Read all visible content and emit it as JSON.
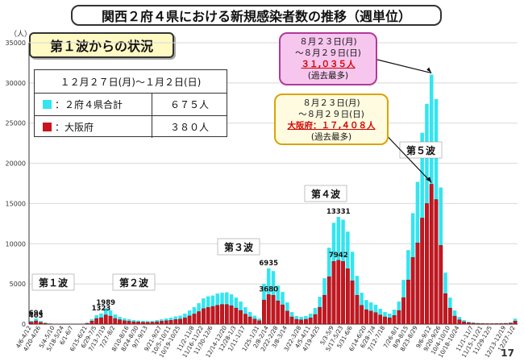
{
  "title": "関西２府４県における新規感染者数の推移（週単位）",
  "subtitle": "第１波からの状況",
  "y_unit": "（人）",
  "page_number": "17",
  "legend": {
    "period": "１２月２７日(月)〜１月２日(日)",
    "rows": [
      {
        "label": "：２府４県合計",
        "value": "６７５人",
        "color": "#33e5f0"
      },
      {
        "label": "：大阪府",
        "value": "３８０人",
        "color": "#c8141e"
      }
    ]
  },
  "callout_total": {
    "line1": "８月２３日(月)",
    "line2": "〜８月２９日(日)",
    "value": "３１,０３５人",
    "note": "(過去最多)"
  },
  "callout_osaka": {
    "line1": "８月２３日(月)",
    "line2": "〜８月２９日(日)",
    "value": "大阪府：１７,４０８人",
    "note": "(過去最多)"
  },
  "colors": {
    "total": "#33e5f0",
    "osaka": "#c8141e"
  },
  "chart_data": {
    "type": "bar",
    "ylim": [
      0,
      35000
    ],
    "yticks": [
      0,
      5000,
      10000,
      15000,
      20000,
      25000,
      30000,
      35000
    ],
    "xtick_labels": [
      "4/6-4/12",
      "4/20-4/26",
      "5/4-5/10",
      "5/18-5/24",
      "6/1-6/7",
      "6/15-6/21",
      "6/29-7/5",
      "7/13-7/19",
      "7/27-8/2",
      "8/10-8/16",
      "8/24-8/30",
      "9/7-9/13",
      "9/21-9/27",
      "10/5-10/11",
      "10/19-10/25",
      "11/2-11/8",
      "11/16-11/22",
      "11/30-12/6",
      "12/14-12/20",
      "12/28-1/3",
      "1/11-1/17",
      "1/25-1/31",
      "2/8-2/14",
      "2/22-2/28",
      "3/8-3/14",
      "3/22-3/28",
      "4/5-4/11",
      "4/19-4/25",
      "5/3-5/9",
      "5/17-5/23",
      "5/31-6/6",
      "6/14-6/20",
      "6/28-7/4",
      "7/12-7/18",
      "7/26-8/1",
      "8/9-8/15",
      "8/23-8/29",
      "9/6-9/12",
      "9/20-9/26",
      "10/4-10/10",
      "10/18-10/24",
      "11/1-11/7",
      "11/15-11/21",
      "11/29-12/5",
      "12/13-12/19",
      "12/27-1/2"
    ],
    "series": [
      {
        "name": "２府４県合計",
        "values": [
          400,
          694,
          380,
          180,
          80,
          20,
          10,
          5,
          5,
          5,
          10,
          40,
          160,
          600,
          1100,
          1323,
          1989,
          1700,
          1200,
          900,
          700,
          600,
          500,
          450,
          400,
          380,
          400,
          500,
          600,
          700,
          800,
          950,
          1050,
          1300,
          1700,
          2100,
          2600,
          3200,
          3450,
          3550,
          3800,
          3900,
          3950,
          3700,
          3300,
          2800,
          2100,
          1500,
          1050,
          700,
          5000,
          6935,
          6600,
          4800,
          4000,
          2700,
          1500,
          1000,
          900,
          1000,
          1300,
          2000,
          3400,
          5700,
          9500,
          12600,
          13331,
          13000,
          11500,
          9000,
          6000,
          3900,
          3000,
          2700,
          2400,
          1900,
          1500,
          1300,
          1800,
          2800,
          5500,
          9200,
          13800,
          17700,
          23800,
          27400,
          31035,
          28000,
          17000,
          6400,
          3300,
          1700,
          900,
          500,
          300,
          200,
          150,
          120,
          100,
          100,
          110,
          120,
          150,
          200,
          675
        ],
        "color": "#33e5f0"
      },
      {
        "name": "大阪府",
        "values": [
          250,
          403,
          220,
          100,
          40,
          10,
          5,
          3,
          3,
          3,
          5,
          25,
          100,
          380,
          700,
          800,
          1150,
          1000,
          700,
          550,
          420,
          360,
          300,
          270,
          240,
          230,
          240,
          300,
          360,
          420,
          480,
          570,
          630,
          780,
          1020,
          1260,
          1560,
          1920,
          2070,
          2200,
          2350,
          2450,
          2450,
          2300,
          2000,
          1700,
          1250,
          900,
          630,
          420,
          3000,
          3680,
          3600,
          2900,
          2400,
          1620,
          900,
          600,
          540,
          600,
          780,
          1200,
          2100,
          3600,
          5900,
          7800,
          7942,
          7800,
          6900,
          5400,
          3600,
          2340,
          1800,
          1620,
          1440,
          1140,
          900,
          780,
          1080,
          1700,
          3300,
          5500,
          8300,
          10100,
          13200,
          15000,
          17408,
          15500,
          9800,
          3800,
          2000,
          1000,
          540,
          300,
          180,
          120,
          90,
          72,
          60,
          60,
          66,
          72,
          90,
          120,
          380
        ],
        "color": "#c8141e"
      }
    ],
    "data_labels": [
      {
        "text": "694"
      },
      {
        "text": "403"
      },
      {
        "text": "1989"
      },
      {
        "text": "1323"
      },
      {
        "text": "6935"
      },
      {
        "text": "3680"
      },
      {
        "text": "13331"
      },
      {
        "text": "7942"
      }
    ],
    "wave_labels": [
      "第１波",
      "第２波",
      "第３波",
      "第４波",
      "第５波"
    ]
  }
}
